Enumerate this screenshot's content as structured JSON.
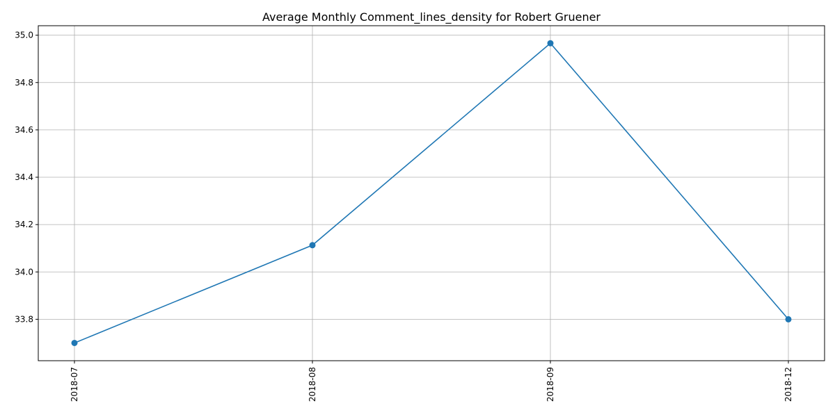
{
  "chart_data": {
    "type": "line",
    "title": "Average Monthly Comment_lines_density for Robert Gruener",
    "xlabel": "",
    "ylabel": "",
    "categories": [
      "2018-07",
      "2018-08",
      "2018-09",
      "2018-12"
    ],
    "series": [
      {
        "values": [
          33.7,
          34.113,
          34.966,
          33.8
        ],
        "color": "#1f77b4",
        "marker": "circle"
      }
    ],
    "ylim": [
      33.625,
      35.04
    ],
    "yticks": [
      33.8,
      34.0,
      34.2,
      34.4,
      34.6,
      34.8,
      35.0
    ],
    "ytick_labels": [
      "33.8",
      "34.0",
      "34.2",
      "34.4",
      "34.6",
      "34.8",
      "35.0"
    ],
    "xtick_rotation": "vertical",
    "grid": true,
    "legend": "none"
  }
}
